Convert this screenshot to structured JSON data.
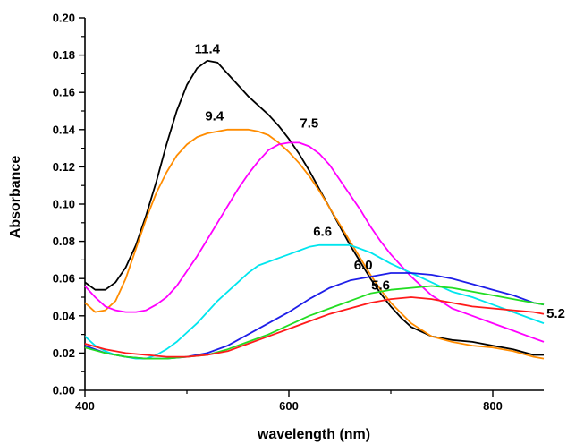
{
  "chart_data": {
    "type": "line",
    "xlabel": "wavelength (nm)",
    "ylabel": "Absorbance",
    "xlim": [
      400,
      850
    ],
    "ylim": [
      0.0,
      0.2
    ],
    "x_ticks": [
      400,
      600,
      800
    ],
    "x_minor_ticks": [
      500,
      700
    ],
    "y_ticks": [
      0.0,
      0.02,
      0.04,
      0.06,
      0.08,
      0.1,
      0.12,
      0.14,
      0.16,
      0.18,
      0.2
    ],
    "y_tick_labels": [
      "0.00",
      "0.02",
      "0.04",
      "0.06",
      "0.08",
      "0.10",
      "0.12",
      "0.14",
      "0.16",
      "0.18",
      "0.20"
    ],
    "grid": false,
    "legend": "none (curves labeled inline)",
    "series": [
      {
        "name": "11.4",
        "color": "#000000",
        "points": [
          [
            400,
            0.058
          ],
          [
            410,
            0.054
          ],
          [
            420,
            0.054
          ],
          [
            430,
            0.058
          ],
          [
            440,
            0.066
          ],
          [
            450,
            0.078
          ],
          [
            460,
            0.094
          ],
          [
            470,
            0.112
          ],
          [
            480,
            0.132
          ],
          [
            490,
            0.15
          ],
          [
            500,
            0.164
          ],
          [
            510,
            0.173
          ],
          [
            520,
            0.177
          ],
          [
            530,
            0.176
          ],
          [
            540,
            0.17
          ],
          [
            550,
            0.164
          ],
          [
            560,
            0.158
          ],
          [
            570,
            0.153
          ],
          [
            580,
            0.148
          ],
          [
            590,
            0.142
          ],
          [
            600,
            0.135
          ],
          [
            610,
            0.127
          ],
          [
            620,
            0.118
          ],
          [
            630,
            0.108
          ],
          [
            640,
            0.098
          ],
          [
            650,
            0.088
          ],
          [
            660,
            0.078
          ],
          [
            670,
            0.069
          ],
          [
            680,
            0.06
          ],
          [
            690,
            0.052
          ],
          [
            700,
            0.045
          ],
          [
            710,
            0.039
          ],
          [
            720,
            0.034
          ],
          [
            740,
            0.029
          ],
          [
            760,
            0.027
          ],
          [
            780,
            0.026
          ],
          [
            800,
            0.024
          ],
          [
            820,
            0.022
          ],
          [
            840,
            0.019
          ],
          [
            850,
            0.019
          ]
        ],
        "label_at": [
          520,
          0.181
        ]
      },
      {
        "name": "9.4",
        "color": "#ff8c00",
        "points": [
          [
            400,
            0.047
          ],
          [
            410,
            0.042
          ],
          [
            420,
            0.043
          ],
          [
            430,
            0.048
          ],
          [
            440,
            0.06
          ],
          [
            450,
            0.076
          ],
          [
            460,
            0.092
          ],
          [
            470,
            0.106
          ],
          [
            480,
            0.117
          ],
          [
            490,
            0.126
          ],
          [
            500,
            0.132
          ],
          [
            510,
            0.136
          ],
          [
            520,
            0.138
          ],
          [
            530,
            0.139
          ],
          [
            540,
            0.14
          ],
          [
            550,
            0.14
          ],
          [
            560,
            0.14
          ],
          [
            570,
            0.139
          ],
          [
            580,
            0.137
          ],
          [
            590,
            0.133
          ],
          [
            600,
            0.128
          ],
          [
            610,
            0.122
          ],
          [
            620,
            0.115
          ],
          [
            630,
            0.107
          ],
          [
            640,
            0.098
          ],
          [
            650,
            0.089
          ],
          [
            660,
            0.08
          ],
          [
            670,
            0.071
          ],
          [
            680,
            0.062
          ],
          [
            690,
            0.054
          ],
          [
            700,
            0.047
          ],
          [
            720,
            0.036
          ],
          [
            740,
            0.029
          ],
          [
            760,
            0.026
          ],
          [
            780,
            0.024
          ],
          [
            800,
            0.023
          ],
          [
            820,
            0.021
          ],
          [
            840,
            0.018
          ],
          [
            850,
            0.017
          ]
        ],
        "label_at": [
          527,
          0.145
        ]
      },
      {
        "name": "7.5",
        "color": "#ff00ff",
        "points": [
          [
            400,
            0.056
          ],
          [
            410,
            0.05
          ],
          [
            420,
            0.045
          ],
          [
            430,
            0.043
          ],
          [
            440,
            0.042
          ],
          [
            450,
            0.042
          ],
          [
            460,
            0.043
          ],
          [
            470,
            0.046
          ],
          [
            480,
            0.05
          ],
          [
            490,
            0.056
          ],
          [
            500,
            0.064
          ],
          [
            510,
            0.072
          ],
          [
            520,
            0.081
          ],
          [
            530,
            0.09
          ],
          [
            540,
            0.099
          ],
          [
            550,
            0.108
          ],
          [
            560,
            0.116
          ],
          [
            570,
            0.123
          ],
          [
            580,
            0.129
          ],
          [
            590,
            0.132
          ],
          [
            600,
            0.133
          ],
          [
            610,
            0.133
          ],
          [
            620,
            0.131
          ],
          [
            630,
            0.127
          ],
          [
            640,
            0.121
          ],
          [
            650,
            0.113
          ],
          [
            660,
            0.105
          ],
          [
            670,
            0.097
          ],
          [
            680,
            0.088
          ],
          [
            690,
            0.08
          ],
          [
            700,
            0.073
          ],
          [
            720,
            0.061
          ],
          [
            740,
            0.051
          ],
          [
            760,
            0.044
          ],
          [
            780,
            0.04
          ],
          [
            800,
            0.036
          ],
          [
            820,
            0.032
          ],
          [
            840,
            0.028
          ],
          [
            850,
            0.026
          ]
        ],
        "label_at": [
          620,
          0.141
        ]
      },
      {
        "name": "6.6",
        "color": "#00e5ee",
        "points": [
          [
            400,
            0.029
          ],
          [
            410,
            0.024
          ],
          [
            420,
            0.021
          ],
          [
            430,
            0.019
          ],
          [
            440,
            0.018
          ],
          [
            450,
            0.017
          ],
          [
            460,
            0.017
          ],
          [
            470,
            0.019
          ],
          [
            480,
            0.022
          ],
          [
            490,
            0.026
          ],
          [
            500,
            0.031
          ],
          [
            510,
            0.036
          ],
          [
            520,
            0.042
          ],
          [
            530,
            0.048
          ],
          [
            540,
            0.053
          ],
          [
            550,
            0.058
          ],
          [
            560,
            0.063
          ],
          [
            570,
            0.067
          ],
          [
            580,
            0.069
          ],
          [
            590,
            0.071
          ],
          [
            600,
            0.073
          ],
          [
            610,
            0.075
          ],
          [
            620,
            0.077
          ],
          [
            630,
            0.078
          ],
          [
            640,
            0.078
          ],
          [
            650,
            0.078
          ],
          [
            660,
            0.078
          ],
          [
            670,
            0.076
          ],
          [
            680,
            0.074
          ],
          [
            690,
            0.071
          ],
          [
            700,
            0.068
          ],
          [
            720,
            0.063
          ],
          [
            740,
            0.058
          ],
          [
            760,
            0.053
          ],
          [
            780,
            0.05
          ],
          [
            800,
            0.046
          ],
          [
            820,
            0.042
          ],
          [
            840,
            0.038
          ],
          [
            850,
            0.036
          ]
        ],
        "label_at": [
          633,
          0.083
        ]
      },
      {
        "name": "6.0",
        "color": "#1e1ee8",
        "points": [
          [
            400,
            0.024
          ],
          [
            420,
            0.02
          ],
          [
            440,
            0.018
          ],
          [
            460,
            0.017
          ],
          [
            480,
            0.017
          ],
          [
            500,
            0.018
          ],
          [
            520,
            0.02
          ],
          [
            540,
            0.024
          ],
          [
            560,
            0.03
          ],
          [
            580,
            0.036
          ],
          [
            600,
            0.042
          ],
          [
            620,
            0.049
          ],
          [
            640,
            0.055
          ],
          [
            660,
            0.059
          ],
          [
            680,
            0.061
          ],
          [
            700,
            0.063
          ],
          [
            720,
            0.063
          ],
          [
            740,
            0.062
          ],
          [
            760,
            0.06
          ],
          [
            780,
            0.057
          ],
          [
            800,
            0.054
          ],
          [
            820,
            0.051
          ],
          [
            840,
            0.047
          ],
          [
            850,
            0.046
          ]
        ],
        "label_at": [
          673,
          0.065
        ]
      },
      {
        "name": "5.6",
        "color": "#22dd22",
        "points": [
          [
            400,
            0.023
          ],
          [
            420,
            0.02
          ],
          [
            440,
            0.018
          ],
          [
            460,
            0.017
          ],
          [
            480,
            0.017
          ],
          [
            500,
            0.018
          ],
          [
            520,
            0.019
          ],
          [
            540,
            0.022
          ],
          [
            560,
            0.026
          ],
          [
            580,
            0.03
          ],
          [
            600,
            0.035
          ],
          [
            620,
            0.04
          ],
          [
            640,
            0.044
          ],
          [
            660,
            0.048
          ],
          [
            680,
            0.052
          ],
          [
            700,
            0.054
          ],
          [
            720,
            0.055
          ],
          [
            740,
            0.056
          ],
          [
            760,
            0.055
          ],
          [
            780,
            0.053
          ],
          [
            800,
            0.051
          ],
          [
            820,
            0.049
          ],
          [
            840,
            0.047
          ],
          [
            850,
            0.046
          ]
        ],
        "label_at": [
          690,
          0.054
        ]
      },
      {
        "name": "5.2",
        "color": "#ff1a1a",
        "points": [
          [
            400,
            0.025
          ],
          [
            420,
            0.022
          ],
          [
            440,
            0.02
          ],
          [
            460,
            0.019
          ],
          [
            480,
            0.018
          ],
          [
            500,
            0.018
          ],
          [
            520,
            0.019
          ],
          [
            540,
            0.021
          ],
          [
            560,
            0.025
          ],
          [
            580,
            0.029
          ],
          [
            600,
            0.033
          ],
          [
            620,
            0.037
          ],
          [
            640,
            0.041
          ],
          [
            660,
            0.044
          ],
          [
            680,
            0.047
          ],
          [
            700,
            0.049
          ],
          [
            720,
            0.05
          ],
          [
            740,
            0.049
          ],
          [
            760,
            0.047
          ],
          [
            780,
            0.045
          ],
          [
            800,
            0.044
          ],
          [
            820,
            0.043
          ],
          [
            840,
            0.042
          ],
          [
            850,
            0.041
          ]
        ],
        "label_at": [
          872,
          0.039
        ]
      }
    ]
  }
}
